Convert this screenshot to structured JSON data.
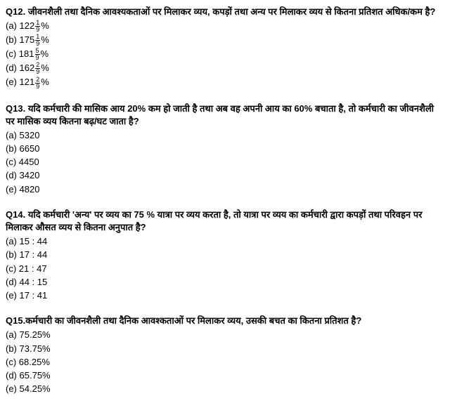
{
  "questions": [
    {
      "num": "Q12.",
      "text": "जीवनशैली तथा दैनिक आवश्यकताओं पर मिलाकर व्यय, कपड़ों तथा अन्य पर मिलाकर व्यय से कितना प्रतिशत अधिक/कम है?",
      "options": [
        {
          "label": "(a)",
          "int": "122",
          "num": "1",
          "den": "9",
          "suffix": "%"
        },
        {
          "label": "(b)",
          "int": "175",
          "num": "1",
          "den": "9",
          "suffix": "%"
        },
        {
          "label": "(c)",
          "int": "181",
          "num": "5",
          "den": "9",
          "suffix": "%"
        },
        {
          "label": "(d)",
          "int": "162",
          "num": "2",
          "den": "9",
          "suffix": "%"
        },
        {
          "label": "(e)",
          "int": "121",
          "num": "2",
          "den": "9",
          "suffix": "%"
        }
      ]
    },
    {
      "num": "Q13.",
      "text": "यदि कर्मचारी की मासिक आय 20% कम हो जाती है तथा अब वह अपनी आय का 60% बचाता है, तो कर्मचारी का जीवनशैली पर मासिक व्यय कितना बढ़/घट जाता है?",
      "options": [
        {
          "label": "(a)",
          "value": "5320"
        },
        {
          "label": "(b)",
          "value": "6650"
        },
        {
          "label": "(c)",
          "value": "4450"
        },
        {
          "label": "(d)",
          "value": "3420"
        },
        {
          "label": "(e)",
          "value": "4820"
        }
      ]
    },
    {
      "num": "Q14.",
      "text": "यदि कर्मचारी 'अन्य' पर व्यय का 75 % यात्रा पर व्यय करता है, तो यात्रा पर व्यय का कर्मचारी द्वारा कपड़ों तथा परिवहन पर मिलाकर औसत व्यय से कितना अनुपात है?",
      "options": [
        {
          "label": "(a)",
          "value": "15 : 44"
        },
        {
          "label": "(b)",
          "value": "17 : 44"
        },
        {
          "label": "(c)",
          "value": "21 : 47"
        },
        {
          "label": "(d)",
          "value": "44 : 15"
        },
        {
          "label": "(e)",
          "value": "17 : 41"
        }
      ]
    },
    {
      "num": "Q15.",
      "text": "कर्मचारी का जीवनशैली तथा दैनिक आवश्कताओं पर मिलाकर व्यय, उसकी बचत का कितना प्रतिशत है?",
      "options": [
        {
          "label": "(a)",
          "value": "75.25%"
        },
        {
          "label": "(b)",
          "value": "73.75%"
        },
        {
          "label": "(c)",
          "value": "68.25%"
        },
        {
          "label": "(d)",
          "value": "65.75%"
        },
        {
          "label": "(e)",
          "value": "54.25%"
        }
      ]
    }
  ]
}
